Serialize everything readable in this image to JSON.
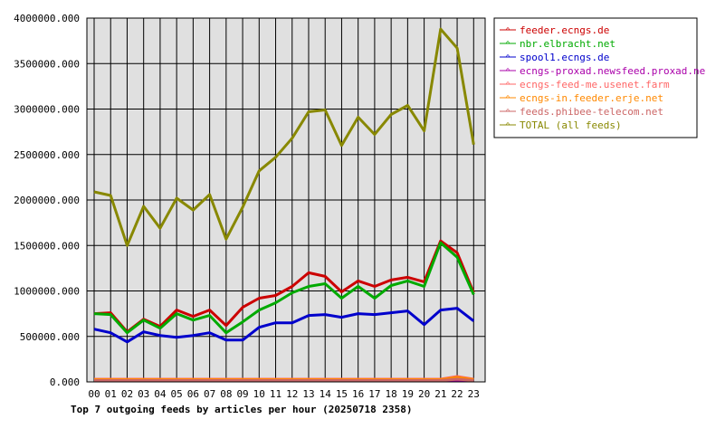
{
  "chart_data": {
    "type": "line",
    "title": "Top 7 outgoing feeds by articles per hour (20250718 2358)",
    "xlabel": "",
    "ylabel": "",
    "categories": [
      "00",
      "01",
      "02",
      "03",
      "04",
      "05",
      "06",
      "07",
      "08",
      "09",
      "10",
      "11",
      "12",
      "13",
      "14",
      "15",
      "16",
      "17",
      "18",
      "19",
      "20",
      "21",
      "22",
      "23"
    ],
    "ylim": [
      0,
      4000000
    ],
    "yticks": [
      0,
      500000,
      1000000,
      1500000,
      2000000,
      2500000,
      3000000,
      3500000,
      4000000
    ],
    "ytick_labels": [
      "0.000",
      "500000.000",
      "1000000.000",
      "1500000.000",
      "2000000.000",
      "2500000.000",
      "3000000.000",
      "3500000.000",
      "4000000.000"
    ],
    "grid": true,
    "legend_position": "right",
    "series": [
      {
        "name": "feeder.ecngs.de",
        "color": "#cc0000",
        "values": [
          750000,
          760000,
          550000,
          690000,
          610000,
          790000,
          720000,
          790000,
          620000,
          820000,
          920000,
          950000,
          1050000,
          1200000,
          1160000,
          990000,
          1110000,
          1050000,
          1120000,
          1150000,
          1100000,
          1550000,
          1420000,
          980000
        ]
      },
      {
        "name": "nbr.elbracht.net",
        "color": "#00aa00",
        "values": [
          750000,
          740000,
          540000,
          680000,
          590000,
          750000,
          680000,
          730000,
          540000,
          660000,
          790000,
          870000,
          980000,
          1050000,
          1080000,
          920000,
          1050000,
          920000,
          1060000,
          1110000,
          1050000,
          1530000,
          1370000,
          960000
        ]
      },
      {
        "name": "spool1.ecngs.de",
        "color": "#0000cc",
        "values": [
          580000,
          540000,
          440000,
          550000,
          510000,
          490000,
          510000,
          540000,
          460000,
          460000,
          600000,
          650000,
          650000,
          730000,
          740000,
          710000,
          750000,
          740000,
          760000,
          780000,
          630000,
          790000,
          810000,
          670000
        ]
      },
      {
        "name": "ecngs-proxad.newsfeed.proxad.net",
        "color": "#aa00aa",
        "values": [
          20000,
          20000,
          20000,
          20000,
          20000,
          20000,
          20000,
          20000,
          20000,
          20000,
          20000,
          20000,
          20000,
          20000,
          20000,
          20000,
          20000,
          20000,
          20000,
          20000,
          20000,
          20000,
          20000,
          20000
        ]
      },
      {
        "name": "ecngs-feed-me.usenet.farm",
        "color": "#ff6666",
        "values": [
          30000,
          30000,
          30000,
          30000,
          30000,
          30000,
          30000,
          30000,
          30000,
          30000,
          30000,
          30000,
          30000,
          30000,
          30000,
          30000,
          30000,
          30000,
          30000,
          30000,
          30000,
          30000,
          60000,
          30000
        ]
      },
      {
        "name": "ecngs-in.feeder.erje.net",
        "color": "#ff8800",
        "values": [
          25000,
          25000,
          25000,
          25000,
          25000,
          25000,
          25000,
          25000,
          25000,
          25000,
          25000,
          25000,
          25000,
          25000,
          25000,
          25000,
          25000,
          25000,
          25000,
          25000,
          25000,
          25000,
          50000,
          25000
        ]
      },
      {
        "name": "feeds.phibee-telecom.net",
        "color": "#cc6666",
        "values": [
          15000,
          15000,
          15000,
          15000,
          15000,
          15000,
          15000,
          15000,
          15000,
          15000,
          15000,
          15000,
          15000,
          15000,
          15000,
          15000,
          15000,
          15000,
          15000,
          15000,
          15000,
          15000,
          30000,
          15000
        ]
      },
      {
        "name": "TOTAL (all feeds)",
        "color": "#888800",
        "values": [
          2090000,
          2050000,
          1500000,
          1930000,
          1690000,
          2020000,
          1890000,
          2060000,
          1570000,
          1920000,
          2320000,
          2470000,
          2680000,
          2970000,
          2990000,
          2600000,
          2910000,
          2720000,
          2940000,
          3040000,
          2760000,
          3880000,
          3670000,
          2610000
        ]
      }
    ]
  }
}
